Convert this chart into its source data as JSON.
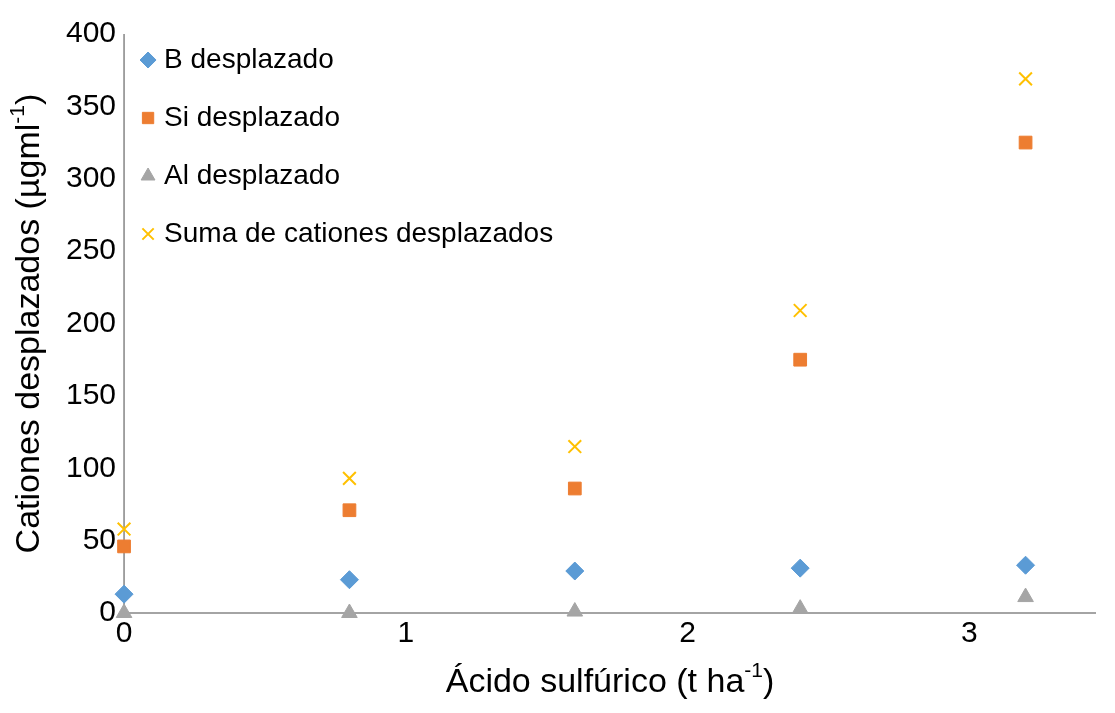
{
  "chart_data": {
    "type": "scatter",
    "xlabel": "Ácido sulfúrico (t ha$^{-1}$)",
    "ylabel": "Cationes desplazados (µgml$^{-1}$)",
    "x": [
      0,
      0.8,
      1.6,
      2.4,
      3.2
    ],
    "series": [
      {
        "name": "B desplazado",
        "color": "#5b9bd5",
        "marker": "diamond",
        "values": [
          13,
          23,
          29,
          31,
          33
        ]
      },
      {
        "name": "Si desplazado",
        "color": "#ed7d31",
        "marker": "square",
        "values": [
          46,
          71,
          86,
          175,
          325
        ]
      },
      {
        "name": "Al desplazado",
        "color": "#a5a5a5",
        "marker": "triangle",
        "values": [
          0,
          0,
          1,
          3,
          11
        ]
      },
      {
        "name": "Suma de cationes desplazados",
        "color": "#ffc000",
        "marker": "cross",
        "values": [
          58,
          93,
          115,
          209,
          369
        ]
      }
    ],
    "xlim": [
      0,
      3.45
    ],
    "xticks": [
      0,
      1,
      2,
      3
    ],
    "ylim": [
      0,
      400
    ],
    "yticks": [
      0,
      50,
      100,
      150,
      200,
      250,
      300,
      350,
      400
    ],
    "grid": false,
    "legend": "top left"
  }
}
